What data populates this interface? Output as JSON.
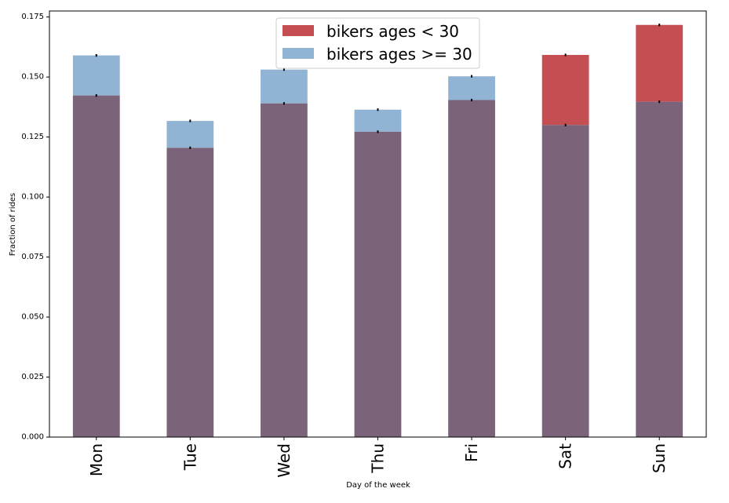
{
  "chart_data": {
    "type": "bar",
    "title": "",
    "xlabel": "Day of the week",
    "ylabel": "Fraction of rides",
    "categories": [
      "Mon",
      "Tue",
      "Wed",
      "Thu",
      "Fri",
      "Sat",
      "Sun"
    ],
    "ylim": [
      0,
      0.1775
    ],
    "yticks": [
      0.0,
      0.025,
      0.05,
      0.075,
      0.1,
      0.125,
      0.15,
      0.175
    ],
    "ytick_labels": [
      "0.000",
      "0.025",
      "0.050",
      "0.075",
      "0.100",
      "0.125",
      "0.150",
      "0.175"
    ],
    "series": [
      {
        "name": "bikers ages < 30",
        "color": "#c44e52",
        "values": [
          0.1423,
          0.1205,
          0.139,
          0.1272,
          0.1404,
          0.1592,
          0.1717
        ]
      },
      {
        "name": "bikers ages >= 30",
        "color": "#92b4d4",
        "values": [
          0.159,
          0.1317,
          0.1531,
          0.1364,
          0.1503,
          0.13,
          0.1397
        ]
      }
    ],
    "overlap_color": "#7b6479",
    "grid": false,
    "legend_position": "upper center"
  }
}
